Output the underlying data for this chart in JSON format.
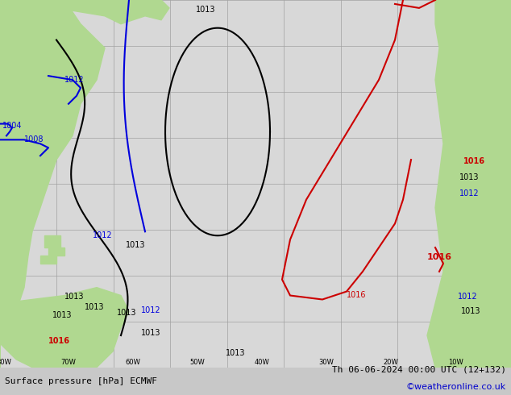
{
  "title_left": "Surface pressure [hPa] ECMWF",
  "title_right": "Th 06-06-2024 00:00 UTC (12+132)",
  "copyright": "©weatheronline.co.uk",
  "bg_color": "#d0d0d0",
  "land_color": "#b0d890",
  "ocean_color": "#d8d8d8",
  "grid_color": "#a0a0a0",
  "title_fontsize": 9,
  "copyright_color": "#0000cc",
  "label_black": "#000000",
  "label_blue": "#0000dd",
  "label_red": "#cc0000",
  "contour_black": "#000000",
  "contour_blue": "#0000dd",
  "contour_red": "#cc0000"
}
